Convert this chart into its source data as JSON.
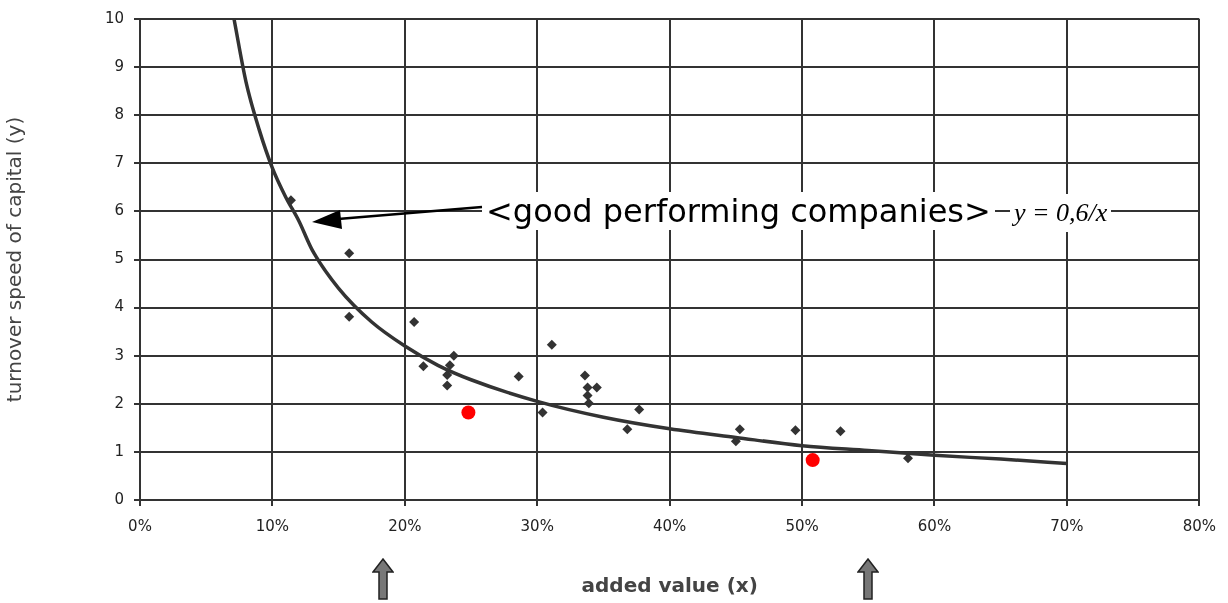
{
  "chart_data": {
    "type": "scatter",
    "xlabel": "added value (x)",
    "ylabel": "turnover speed of capital (y)",
    "xlim": [
      0,
      80
    ],
    "xticks": [
      {
        "value": 0,
        "label": "0%"
      },
      {
        "value": 10,
        "label": "10%"
      },
      {
        "value": 20,
        "label": "20%"
      },
      {
        "value": 30,
        "label": "30%"
      },
      {
        "value": 40,
        "label": "40%"
      },
      {
        "value": 50,
        "label": "50%"
      },
      {
        "value": 60,
        "label": "60%"
      },
      {
        "value": 70,
        "label": "70%"
      },
      {
        "value": 80,
        "label": "80%"
      }
    ],
    "ylim": [
      0,
      10
    ],
    "yticks": [
      0,
      1,
      2,
      3,
      4,
      5,
      6,
      7,
      8,
      9,
      10
    ],
    "grid": true,
    "legend": false,
    "series": [
      {
        "marker": "diamond",
        "color": "#333333",
        "x": [
          11.4,
          15.8,
          15.8,
          20.7,
          21.4,
          23.7,
          23.4,
          23.2,
          23.2,
          28.6,
          31.1,
          30.4,
          33.6,
          33.8,
          34.5,
          33.8,
          33.9,
          37.7,
          36.8,
          45.3,
          45.0,
          49.5,
          52.9,
          58.0
        ],
        "values": [
          6.23,
          5.13,
          3.81,
          3.7,
          2.78,
          3.0,
          2.8,
          2.6,
          2.38,
          2.57,
          3.23,
          1.82,
          2.59,
          2.34,
          2.34,
          2.17,
          2.01,
          1.88,
          1.47,
          1.47,
          1.22,
          1.45,
          1.43,
          0.87
        ]
      },
      {
        "marker": "circle",
        "color": "#ff0000",
        "x": [
          24.8,
          50.8
        ],
        "values": [
          1.82,
          0.83
        ]
      },
      {
        "type": "line",
        "marker": "none",
        "color": "#333333",
        "x": [
          7.1,
          8,
          9,
          10,
          11,
          12,
          13,
          15,
          17.5,
          20,
          22.5,
          25,
          30,
          35,
          40,
          45,
          50,
          55,
          60,
          65,
          70
        ],
        "values": [
          10,
          8.7,
          7.7,
          6.9,
          6.3,
          5.8,
          5.2,
          4.4,
          3.7,
          3.2,
          2.8,
          2.5,
          2.05,
          1.72,
          1.48,
          1.3,
          1.13,
          1.03,
          0.93,
          0.85,
          0.76
        ]
      }
    ],
    "annotations": [
      "<good performing companies>",
      "y = 0,6/x"
    ]
  }
}
